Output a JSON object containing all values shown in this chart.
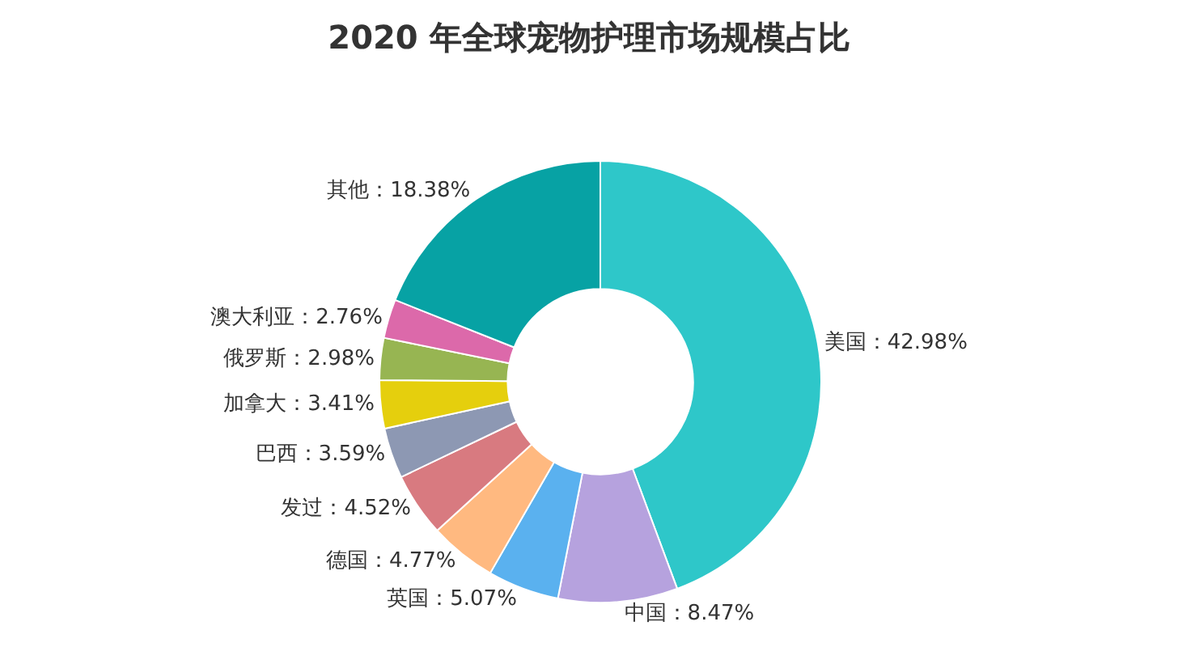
{
  "chart_data": {
    "type": "donut",
    "title": "2020 年全球宠物护理市场规模占比",
    "categories": [
      "美国",
      "中国",
      "英国",
      "德国",
      "发过",
      "巴西",
      "加拿大",
      "俄罗斯",
      "澳大利亚",
      "其他"
    ],
    "values": [
      42.98,
      8.47,
      5.07,
      4.77,
      4.52,
      3.59,
      3.41,
      2.98,
      2.76,
      18.38
    ],
    "value_labels": [
      "42.98%",
      "8.47%",
      "5.07%",
      "4.77%",
      "4.52%",
      "3.59%",
      "3.41%",
      "2.98%",
      "2.76%",
      "18.38%"
    ],
    "colors": [
      "#2ec7c9",
      "#b6a2de",
      "#5ab1ef",
      "#ffb980",
      "#d87a80",
      "#8d98b3",
      "#e5cf0d",
      "#97b552",
      "#dc69aa",
      "#07a2a4"
    ],
    "legend": false
  }
}
